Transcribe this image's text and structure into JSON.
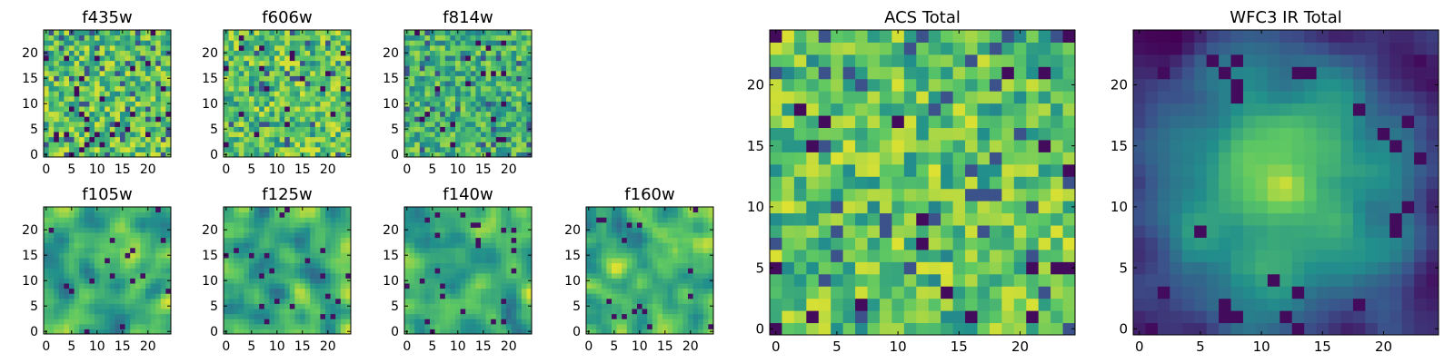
{
  "figure": {
    "colormap": "viridis",
    "colors": [
      "#440154",
      "#3b528b",
      "#21908c",
      "#5dc863",
      "#fde725"
    ]
  },
  "chart_data": [
    {
      "type": "heatmap",
      "title": "f435w",
      "size": 25,
      "xticks": [
        "0",
        "5",
        "10",
        "15",
        "20"
      ],
      "yticks": [
        "0",
        "5",
        "10",
        "15",
        "20"
      ],
      "xlim": [
        0,
        24
      ],
      "ylim": [
        0,
        24
      ],
      "appearance": "pixel noise, mostly green-yellow with scattered dark-purple pixels",
      "grid": false
    },
    {
      "type": "heatmap",
      "title": "f606w",
      "size": 25,
      "xticks": [
        "0",
        "5",
        "10",
        "15",
        "20"
      ],
      "yticks": [
        "0",
        "5",
        "10",
        "15",
        "20"
      ],
      "xlim": [
        0,
        24
      ],
      "ylim": [
        0,
        24
      ],
      "appearance": "pixel noise, mostly green-yellow with scattered dark-purple pixels",
      "grid": false
    },
    {
      "type": "heatmap",
      "title": "f814w",
      "size": 25,
      "xticks": [
        "0",
        "5",
        "10",
        "15",
        "20"
      ],
      "yticks": [
        "0",
        "5",
        "10",
        "15",
        "20"
      ],
      "xlim": [
        0,
        24
      ],
      "ylim": [
        0,
        24
      ],
      "appearance": "pixel noise with slightly more teal",
      "grid": false
    },
    {
      "type": "heatmap",
      "title": "f105w",
      "size": 25,
      "xticks": [
        "0",
        "5",
        "10",
        "15",
        "20"
      ],
      "yticks": [
        "0",
        "5",
        "10",
        "15",
        "20"
      ],
      "xlim": [
        0,
        24
      ],
      "ylim": [
        0,
        24
      ],
      "appearance": "smooth blotchy texture, green-yellow with dark spots",
      "grid": false
    },
    {
      "type": "heatmap",
      "title": "f125w",
      "size": 25,
      "xticks": [
        "0",
        "5",
        "10",
        "15",
        "20"
      ],
      "yticks": [
        "0",
        "5",
        "10",
        "15",
        "20"
      ],
      "xlim": [
        0,
        24
      ],
      "ylim": [
        0,
        24
      ],
      "appearance": "smooth blotchy texture, green-yellow with dark spots",
      "grid": false
    },
    {
      "type": "heatmap",
      "title": "f140w",
      "size": 25,
      "xticks": [
        "0",
        "5",
        "10",
        "15",
        "20"
      ],
      "yticks": [
        "0",
        "5",
        "10",
        "15",
        "20"
      ],
      "xlim": [
        0,
        24
      ],
      "ylim": [
        0,
        24
      ],
      "appearance": "smooth blotchy texture, green-yellow with dark spots",
      "grid": false
    },
    {
      "type": "heatmap",
      "title": "f160w",
      "size": 25,
      "xticks": [
        "0",
        "5",
        "10",
        "15",
        "20"
      ],
      "yticks": [
        "0",
        "5",
        "10",
        "15",
        "20"
      ],
      "xlim": [
        0,
        24
      ],
      "ylim": [
        0,
        24
      ],
      "appearance": "smooth blotchy texture, green-yellow with dark spots",
      "grid": false
    },
    {
      "type": "heatmap",
      "title": "ACS Total",
      "size": 25,
      "xticks": [
        "0",
        "5",
        "10",
        "15",
        "20"
      ],
      "yticks": [
        "0",
        "5",
        "10",
        "15",
        "20"
      ],
      "xlim": [
        0,
        24
      ],
      "ylim": [
        0,
        24
      ],
      "appearance": "pixel noise, mostly green-yellow with scattered dark pixels",
      "grid": false
    },
    {
      "type": "heatmap",
      "title": "WFC3 IR Total",
      "size": 25,
      "xticks": [
        "0",
        "5",
        "10",
        "15",
        "20"
      ],
      "yticks": [
        "0",
        "5",
        "10",
        "15",
        "20"
      ],
      "xlim": [
        0,
        24
      ],
      "ylim": [
        0,
        24
      ],
      "appearance": "bright yellow center fading to teal edges with dark-purple spots near edges",
      "grid": false
    }
  ]
}
